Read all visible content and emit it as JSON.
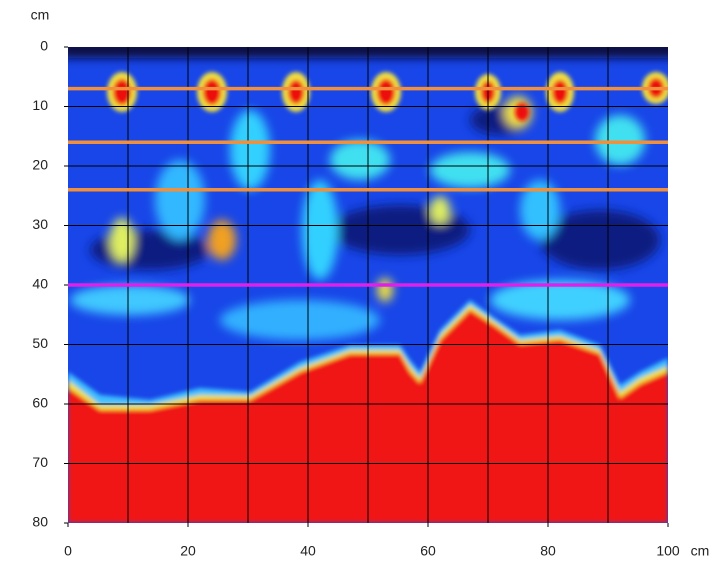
{
  "chart_data": {
    "type": "heatmap-profile",
    "x_label": "cm",
    "y_label": "cm",
    "xlim": [
      0,
      100
    ],
    "ylim": [
      0,
      80
    ],
    "y_inverted": true,
    "xticks": [
      0,
      20,
      40,
      60,
      80,
      100
    ],
    "yticks": [
      0,
      10,
      20,
      30,
      40,
      50,
      60,
      70,
      80
    ],
    "x_grid": [
      10,
      20,
      30,
      40,
      50,
      60,
      70,
      80,
      90
    ],
    "y_grid": [
      10,
      20,
      30,
      40,
      50,
      60,
      70
    ],
    "grid_color": "#000000",
    "lines": [
      {
        "value": 7,
        "color": "#f0903c"
      },
      {
        "value": 16,
        "color": "#f0903c"
      },
      {
        "value": 24,
        "color": "#f0903c"
      },
      {
        "value": 40,
        "color": "#e020e8"
      }
    ]
  }
}
